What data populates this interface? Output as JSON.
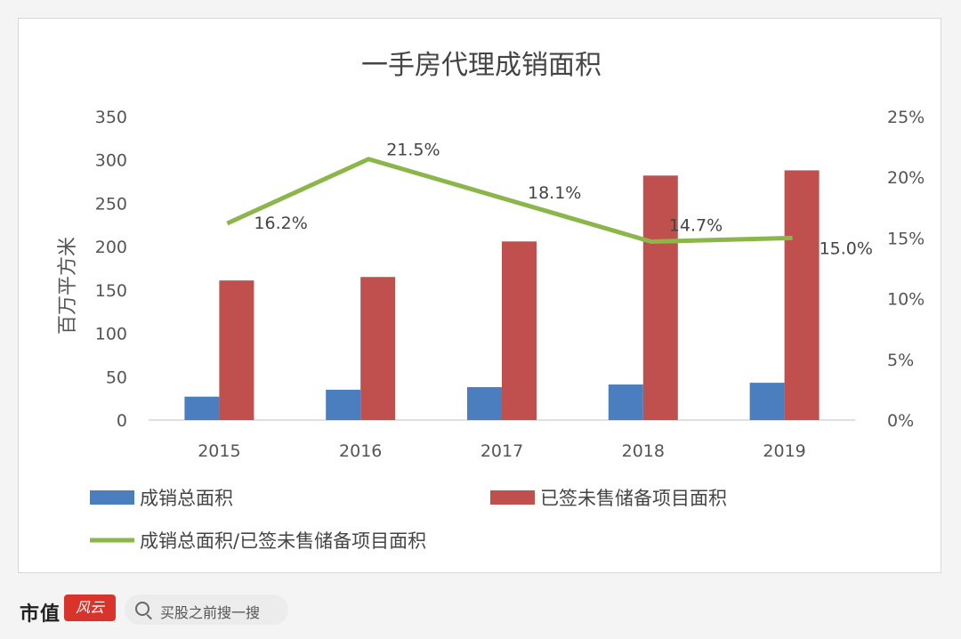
{
  "chart_data": {
    "type": "bar",
    "title": "一手房代理成销面积",
    "ylabel": "百万平方米",
    "ylim": [
      0,
      350
    ],
    "y_ticks": [
      0,
      50,
      100,
      150,
      200,
      250,
      300,
      350
    ],
    "y2lim": [
      0,
      25
    ],
    "y2_ticks": [
      "0%",
      "5%",
      "10%",
      "15%",
      "20%",
      "25%"
    ],
    "categories": [
      "2015",
      "2016",
      "2017",
      "2018",
      "2019"
    ],
    "series": [
      {
        "name": "成销总面积",
        "kind": "bar",
        "color": "#4a7ebf",
        "values": [
          27,
          35,
          38,
          41,
          43
        ]
      },
      {
        "name": "已签未售储备项目面积",
        "kind": "bar",
        "color": "#c0504d",
        "values": [
          161,
          165,
          206,
          282,
          288
        ]
      },
      {
        "name": "成销总面积/已签未售储备项目面积",
        "kind": "line",
        "axis": "right",
        "color": "#8ab64a",
        "values": [
          16.2,
          21.5,
          18.1,
          14.7,
          15.0
        ],
        "labels": [
          "16.2%",
          "21.5%",
          "18.1%",
          "14.7%",
          "15.0%"
        ]
      }
    ],
    "legend": "bottom",
    "grid": false
  },
  "footer": {
    "brand": "市值",
    "brand_mark": "风云",
    "search_placeholder": "买股之前搜一搜"
  }
}
